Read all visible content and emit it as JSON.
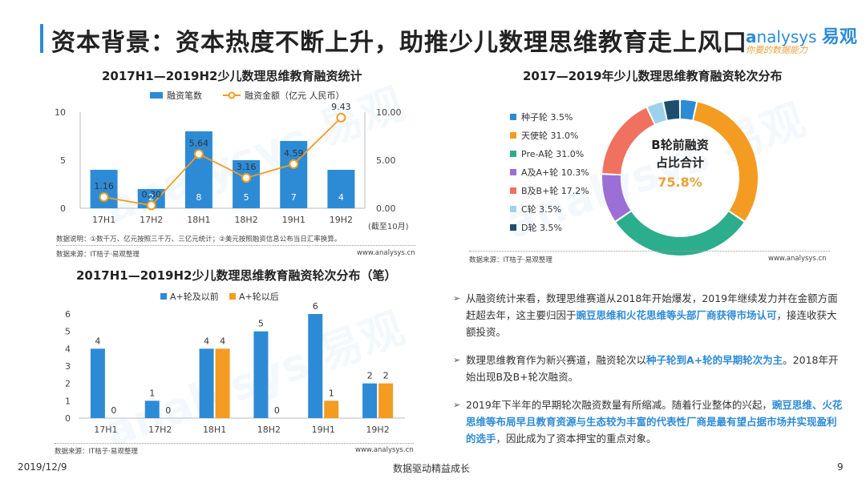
{
  "header": {
    "title": "资本背景：资本热度不断上升，助推少儿数理思维教育走上风口",
    "logo_text": "nalysys",
    "logo_brand": "易观",
    "logo_slogan": "你要的数据能力"
  },
  "watermark": {
    "text": "analysys 易观"
  },
  "chart1": {
    "title": "2017H1—2019H2少儿数理思维教育融资统计",
    "legend_bar": "融资笔数",
    "legend_line": "融资金额（亿元 人民币）",
    "note": "数据说明：①数千万、亿元按照三千万、三亿元统计；②美元按照融资信息公布当日汇率换算。",
    "source": "数据来源：IT桔子·易观整理",
    "site": "www.analysys.cn",
    "axis_suffix": "(截至10月)",
    "left_ticks": [
      "10",
      "5",
      "0"
    ],
    "right_ticks": [
      "10.00",
      "5.00",
      "0.00"
    ]
  },
  "chart2": {
    "title": "2017—2019年少儿数理思维教育融资轮次分布",
    "center_label_1": "B轮前融资",
    "center_label_2": "占比合计",
    "center_value": "75.8%",
    "source": "数据来源：IT桔子·易观整理",
    "site": "www.analysys.cn"
  },
  "chart3": {
    "title": "2017H1—2019H2少儿数理思维教育融资轮次分布（笔）",
    "source": "数据来源：IT桔子·易观整理",
    "site": "www.analysys.cn",
    "left_ticks": [
      "6",
      "5",
      "4",
      "3",
      "2",
      "1",
      "0"
    ]
  },
  "bullets": [
    {
      "pre": "从融资统计来看，数理思维赛道从2018年开始爆发，2019年继续发力并在金额方面赶超去年，这主要归因于",
      "hl": "豌豆思维和火花思维等头部厂商获得市场认可",
      "post": "，接连收获大额投资。"
    },
    {
      "pre": "数理思维教育作为新兴赛道，融资轮次以",
      "hl": "种子轮到A+轮的早期轮次为主",
      "post": "。2018年开始出现B及B+轮次融资。"
    },
    {
      "pre": "2019年下半年的早期轮次融资数量有所缩减。随着行业整体的兴起，",
      "hl": "豌豆思维、火花思维等布局早且教育资源与生态较为丰富的代表性厂商是最有望占据市场并实现盈利的选手",
      "post": "，因此成为了资本押宝的重点对象。"
    }
  ],
  "footer": {
    "date": "2019/12/9",
    "slogan": "数据驱动精益成长",
    "page": "9"
  },
  "colors": {
    "blue": "#2d8bd6",
    "orange": "#f39c21",
    "teal": "#2cae8c",
    "purple": "#9b6fd6",
    "coral": "#f07160",
    "lightblue": "#9cd3ea",
    "navy": "#1e4e6e"
  },
  "chart_data": [
    {
      "type": "bar",
      "title": "2017H1—2019H2少儿数理思维教育融资统计",
      "categories": [
        "17H1",
        "17H2",
        "18H1",
        "18H2",
        "19H1",
        "19H2"
      ],
      "series": [
        {
          "name": "融资笔数",
          "type": "bar",
          "values": [
            4,
            2,
            8,
            5,
            7,
            4
          ]
        },
        {
          "name": "融资金额（亿元 人民币）",
          "type": "line",
          "values": [
            1.16,
            0.3,
            5.64,
            3.16,
            4.59,
            9.43
          ]
        }
      ],
      "ylim": [
        0,
        10
      ],
      "y2lim": [
        0,
        10
      ]
    },
    {
      "type": "pie",
      "title": "2017—2019年少儿数理思维教育融资轮次分布",
      "slices": [
        {
          "label": "种子轮",
          "value": 3.5,
          "display": "3.5%",
          "color": "#2d8bd6"
        },
        {
          "label": "天使轮",
          "value": 31.0,
          "display": "31.0%",
          "color": "#f39c21"
        },
        {
          "label": "Pre-A轮",
          "value": 31.0,
          "display": "31.0%",
          "color": "#2cae8c"
        },
        {
          "label": "A及A+轮",
          "value": 10.3,
          "display": "10.3%",
          "color": "#9b6fd6"
        },
        {
          "label": "B及B+轮",
          "value": 17.2,
          "display": "17.2%",
          "color": "#f07160"
        },
        {
          "label": "C轮",
          "value": 3.5,
          "display": "3.5%",
          "color": "#9cd3ea"
        },
        {
          "label": "D轮",
          "value": 3.5,
          "display": "3.5%",
          "color": "#1e4e6e"
        }
      ]
    },
    {
      "type": "bar",
      "title": "2017H1—2019H2少儿数理思维教育融资轮次分布（笔）",
      "categories": [
        "17H1",
        "17H2",
        "18H1",
        "18H2",
        "19H1",
        "19H2"
      ],
      "series": [
        {
          "name": "A+轮及以前",
          "values": [
            4,
            1,
            4,
            5,
            6,
            2
          ]
        },
        {
          "name": "A+轮以后",
          "values": [
            0,
            0,
            4,
            0,
            1,
            2
          ]
        }
      ],
      "ylim": [
        0,
        6
      ]
    }
  ]
}
